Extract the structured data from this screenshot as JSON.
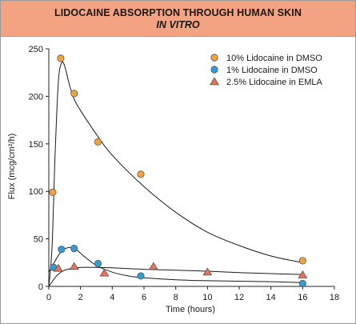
{
  "header": {
    "title_line1": "LIDOCAINE ABSORPTION THROUGH HUMAN SKIN",
    "title_line2": "IN VITRO"
  },
  "colors": {
    "header_bg": "#f3a282",
    "orange": "#f4a23a",
    "blue": "#2e9fd6",
    "red": "#e8735a",
    "curve": "#1a1a1a"
  },
  "chart_data": {
    "type": "scatter",
    "title": "LIDOCAINE ABSORPTION THROUGH HUMAN SKIN IN VITRO",
    "xlabel": "Time (hours)",
    "ylabel": "Flux (mcg/cm²/h)",
    "xlim": [
      0,
      18
    ],
    "ylim": [
      0,
      250
    ],
    "xticks": [
      0,
      2,
      4,
      6,
      8,
      10,
      12,
      14,
      16,
      18
    ],
    "yticks": [
      0,
      50,
      100,
      150,
      200,
      250
    ],
    "grid": false,
    "legend_position": "top-right",
    "series": [
      {
        "name": "10%  Lidocaine in DMSO",
        "marker": "circle",
        "color": "#f4a23a",
        "points": [
          [
            0.25,
            99
          ],
          [
            0.75,
            240
          ],
          [
            1.6,
            203
          ],
          [
            3.1,
            152
          ],
          [
            5.8,
            118
          ],
          [
            16,
            27
          ]
        ],
        "curve": [
          [
            0,
            0
          ],
          [
            0.2,
            40
          ],
          [
            0.4,
            140
          ],
          [
            0.6,
            215
          ],
          [
            0.8,
            235
          ],
          [
            1.0,
            232
          ],
          [
            1.3,
            212
          ],
          [
            1.6,
            197
          ],
          [
            2.0,
            185
          ],
          [
            3.0,
            160
          ],
          [
            4.0,
            138
          ],
          [
            6.0,
            105
          ],
          [
            8.0,
            78
          ],
          [
            10.0,
            57
          ],
          [
            12.0,
            43
          ],
          [
            14.0,
            32
          ],
          [
            16.0,
            25
          ]
        ]
      },
      {
        "name": "1%    Lidocaine in DMSO",
        "marker": "circle",
        "color": "#2e9fd6",
        "points": [
          [
            0.3,
            20
          ],
          [
            0.8,
            39
          ],
          [
            1.6,
            40
          ],
          [
            3.1,
            24
          ],
          [
            5.8,
            11
          ],
          [
            16,
            3
          ]
        ],
        "curve": [
          [
            0,
            15
          ],
          [
            0.3,
            24
          ],
          [
            0.8,
            37
          ],
          [
            1.3,
            41
          ],
          [
            1.7,
            39
          ],
          [
            2.2,
            32
          ],
          [
            3.0,
            22
          ],
          [
            4.0,
            15
          ],
          [
            5.0,
            11
          ],
          [
            6.0,
            9
          ],
          [
            8.0,
            7
          ],
          [
            10.0,
            6
          ],
          [
            12.0,
            5.5
          ],
          [
            14.0,
            5
          ],
          [
            16.0,
            4
          ]
        ]
      },
      {
        "name": "2.5% Lidocaine in EMLA",
        "marker": "triangle",
        "color": "#e8735a",
        "points": [
          [
            0.6,
            19
          ],
          [
            1.6,
            21
          ],
          [
            3.5,
            14
          ],
          [
            6.6,
            21
          ],
          [
            10,
            15
          ],
          [
            16,
            12
          ]
        ],
        "curve": [
          [
            0,
            0
          ],
          [
            0.3,
            7
          ],
          [
            0.6,
            13
          ],
          [
            1.0,
            17
          ],
          [
            1.5,
            19
          ],
          [
            2.0,
            20
          ],
          [
            3.0,
            20
          ],
          [
            4.0,
            19.5
          ],
          [
            6.0,
            18
          ],
          [
            8.0,
            17
          ],
          [
            10.0,
            16
          ],
          [
            12.0,
            14.5
          ],
          [
            14.0,
            13.5
          ],
          [
            16.0,
            12.5
          ]
        ]
      }
    ]
  }
}
